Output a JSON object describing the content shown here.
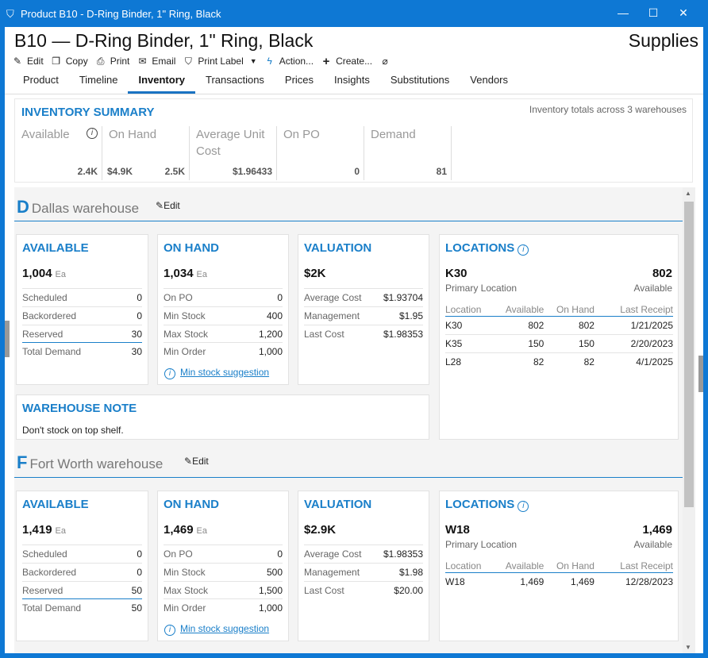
{
  "window": {
    "title": "Product B10 - D-Ring Binder, 1\" Ring, Black",
    "minimize": "—",
    "maximize": "☐",
    "close": "✕",
    "tag_icon": "tag-icon"
  },
  "header": {
    "title": "B10 — D-Ring Binder, 1\" Ring, Black",
    "category": "Supplies"
  },
  "toolbar": {
    "edit": "Edit",
    "copy": "Copy",
    "print": "Print",
    "email": "Email",
    "print_label": "Print Label",
    "action": "Action...",
    "create": "Create..."
  },
  "tabs": [
    "Product",
    "Timeline",
    "Inventory",
    "Transactions",
    "Prices",
    "Insights",
    "Substitutions",
    "Vendors"
  ],
  "summary": {
    "title": "INVENTORY SUMMARY",
    "note": "Inventory totals across 3 warehouses",
    "available_label": "Available",
    "available_value": "2.4K",
    "onhand_label": "On Hand",
    "onhand_value_money": "$4.9K",
    "onhand_value": "2.5K",
    "avgcost_label": "Average Unit Cost",
    "avgcost_value": "$1.96433",
    "onpo_label": "On PO",
    "onpo_value": "0",
    "demand_label": "Demand",
    "demand_value": "81"
  },
  "warehouses": [
    {
      "letter": "D",
      "name": "Dallas warehouse",
      "edit": "Edit",
      "available": {
        "title": "AVAILABLE",
        "value": "1,004",
        "unit": "Ea",
        "rows": [
          [
            "Scheduled",
            "0"
          ],
          [
            "Backordered",
            "0"
          ],
          [
            "Reserved",
            "30"
          ],
          [
            "Total Demand",
            "30"
          ]
        ]
      },
      "onhand": {
        "title": "ON HAND",
        "value": "1,034",
        "unit": "Ea",
        "rows": [
          [
            "On PO",
            "0"
          ],
          [
            "Min Stock",
            "400"
          ],
          [
            "Max Stock",
            "1,200"
          ],
          [
            "Min Order",
            "1,000"
          ]
        ],
        "link": "Min stock suggestion"
      },
      "valuation": {
        "title": "VALUATION",
        "value": "$2K",
        "rows": [
          [
            "Average Cost",
            "$1.93704"
          ],
          [
            "Management",
            "$1.95"
          ],
          [
            "Last Cost",
            "$1.98353"
          ]
        ]
      },
      "locations": {
        "title": "LOCATIONS",
        "primary": "K30",
        "primary_value": "802",
        "primary_label": "Primary Location",
        "primary_value_label": "Available",
        "headers": [
          "Location",
          "Available",
          "On Hand",
          "Last Receipt"
        ],
        "rows": [
          [
            "K30",
            "802",
            "802",
            "1/21/2025"
          ],
          [
            "K35",
            "150",
            "150",
            "2/20/2023"
          ],
          [
            "L28",
            "82",
            "82",
            "4/1/2025"
          ]
        ]
      },
      "note": {
        "title": "WAREHOUSE NOTE",
        "text": "Don't stock on top shelf."
      }
    },
    {
      "letter": "F",
      "name": "Fort Worth warehouse",
      "edit": "Edit",
      "available": {
        "title": "AVAILABLE",
        "value": "1,419",
        "unit": "Ea",
        "rows": [
          [
            "Scheduled",
            "0"
          ],
          [
            "Backordered",
            "0"
          ],
          [
            "Reserved",
            "50"
          ],
          [
            "Total Demand",
            "50"
          ]
        ]
      },
      "onhand": {
        "title": "ON HAND",
        "value": "1,469",
        "unit": "Ea",
        "rows": [
          [
            "On PO",
            "0"
          ],
          [
            "Min Stock",
            "500"
          ],
          [
            "Max Stock",
            "1,500"
          ],
          [
            "Min Order",
            "1,000"
          ]
        ],
        "link": "Min stock suggestion"
      },
      "valuation": {
        "title": "VALUATION",
        "value": "$2.9K",
        "rows": [
          [
            "Average Cost",
            "$1.98353"
          ],
          [
            "Management",
            "$1.98"
          ],
          [
            "Last Cost",
            "$20.00"
          ]
        ]
      },
      "locations": {
        "title": "LOCATIONS",
        "primary": "W18",
        "primary_value": "1,469",
        "primary_label": "Primary Location",
        "primary_value_label": "Available",
        "headers": [
          "Location",
          "Available",
          "On Hand",
          "Last Receipt"
        ],
        "rows": [
          [
            "W18",
            "1,469",
            "1,469",
            "12/28/2023"
          ]
        ]
      }
    }
  ],
  "colors": {
    "accent": "#1a7fc9",
    "titlebar": "#0e78d4"
  }
}
